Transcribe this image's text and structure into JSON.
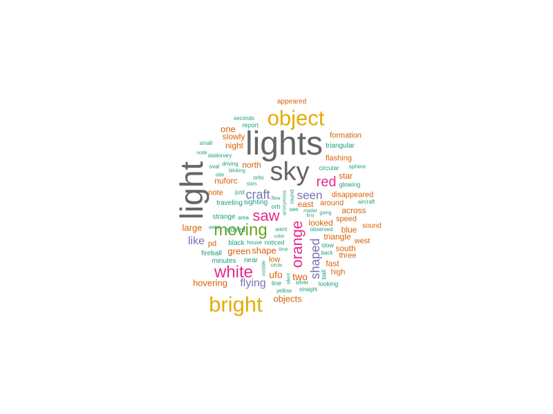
{
  "colors": {
    "teal": "#1b9e77",
    "orange": "#d95f02",
    "purple": "#7570b3",
    "pink": "#e7298a",
    "green": "#66a61e",
    "gold": "#e6ab02",
    "gray": "#666666"
  },
  "words": [
    {
      "text": "lights",
      "color": "gray"
    },
    {
      "text": "sky",
      "color": "gray"
    },
    {
      "text": "light",
      "color": "gray"
    },
    {
      "text": "object",
      "color": "gold"
    },
    {
      "text": "bright",
      "color": "gold"
    },
    {
      "text": "moving",
      "color": "green"
    },
    {
      "text": "white",
      "color": "pink"
    },
    {
      "text": "orange",
      "color": "pink"
    },
    {
      "text": "saw",
      "color": "pink"
    },
    {
      "text": "red",
      "color": "pink"
    },
    {
      "text": "shaped",
      "color": "purple"
    },
    {
      "text": "craft",
      "color": "purple"
    },
    {
      "text": "seen",
      "color": "purple"
    },
    {
      "text": "flying",
      "color": "purple"
    },
    {
      "text": "like",
      "color": "purple"
    },
    {
      "text": "ufo",
      "color": "orange"
    },
    {
      "text": "two",
      "color": "orange"
    },
    {
      "text": "green",
      "color": "orange"
    },
    {
      "text": "shape",
      "color": "orange"
    },
    {
      "text": "hovering",
      "color": "orange"
    },
    {
      "text": "objects",
      "color": "orange"
    },
    {
      "text": "large",
      "color": "orange"
    },
    {
      "text": "one",
      "color": "orange"
    },
    {
      "text": "slowly",
      "color": "orange"
    },
    {
      "text": "night",
      "color": "orange"
    },
    {
      "text": "north",
      "color": "orange"
    },
    {
      "text": "nuforc",
      "color": "orange"
    },
    {
      "text": "note",
      "color": "orange"
    },
    {
      "text": "pd",
      "color": "orange"
    },
    {
      "text": "low",
      "color": "orange"
    },
    {
      "text": "star",
      "color": "orange"
    },
    {
      "text": "flashing",
      "color": "orange"
    },
    {
      "text": "formation",
      "color": "orange"
    },
    {
      "text": "appeared",
      "color": "orange"
    },
    {
      "text": "disappeared",
      "color": "orange"
    },
    {
      "text": "east",
      "color": "orange"
    },
    {
      "text": "around",
      "color": "orange"
    },
    {
      "text": "across",
      "color": "orange"
    },
    {
      "text": "looked",
      "color": "orange"
    },
    {
      "text": "triangle",
      "color": "orange"
    },
    {
      "text": "blue",
      "color": "orange"
    },
    {
      "text": "speed",
      "color": "orange"
    },
    {
      "text": "south",
      "color": "orange"
    },
    {
      "text": "west",
      "color": "orange"
    },
    {
      "text": "sound",
      "color": "orange"
    },
    {
      "text": "three",
      "color": "orange"
    },
    {
      "text": "fast",
      "color": "orange"
    },
    {
      "text": "high",
      "color": "orange"
    },
    {
      "text": "report",
      "color": "teal"
    },
    {
      "text": "seconds",
      "color": "teal"
    },
    {
      "text": "small",
      "color": "teal"
    },
    {
      "text": "node",
      "color": "teal"
    },
    {
      "text": "stationary",
      "color": "teal"
    },
    {
      "text": "triangular",
      "color": "teal"
    },
    {
      "text": "oval",
      "color": "teal"
    },
    {
      "text": "driving",
      "color": "teal"
    },
    {
      "text": "blinking",
      "color": "teal"
    },
    {
      "text": "side",
      "color": "teal"
    },
    {
      "text": "circular",
      "color": "teal"
    },
    {
      "text": "sphere",
      "color": "teal"
    },
    {
      "text": "orbs",
      "color": "teal"
    },
    {
      "text": "stars",
      "color": "teal"
    },
    {
      "text": "glowing",
      "color": "teal"
    },
    {
      "text": "just",
      "color": "teal"
    },
    {
      "text": "flew",
      "color": "teal"
    },
    {
      "text": "traveling",
      "color": "teal"
    },
    {
      "text": "sighting",
      "color": "teal"
    },
    {
      "text": "orb",
      "color": "teal"
    },
    {
      "text": "anonymous",
      "color": "teal"
    },
    {
      "text": "round",
      "color": "teal"
    },
    {
      "text": "aircraft",
      "color": "teal"
    },
    {
      "text": "away",
      "color": "teal"
    },
    {
      "text": "moved",
      "color": "teal"
    },
    {
      "text": "strange",
      "color": "teal"
    },
    {
      "text": "area",
      "color": "teal"
    },
    {
      "text": "see",
      "color": "teal"
    },
    {
      "text": "madar",
      "color": "teal"
    },
    {
      "text": "first",
      "color": "teal"
    },
    {
      "text": "going",
      "color": "teal"
    },
    {
      "text": "went",
      "color": "teal"
    },
    {
      "text": "color",
      "color": "teal"
    },
    {
      "text": "observed",
      "color": "teal"
    },
    {
      "text": "black",
      "color": "teal"
    },
    {
      "text": "house",
      "color": "teal"
    },
    {
      "text": "noticed",
      "color": "teal"
    },
    {
      "text": "time",
      "color": "teal"
    },
    {
      "text": "slow",
      "color": "teal"
    },
    {
      "text": "back",
      "color": "teal"
    },
    {
      "text": "fireball",
      "color": "teal"
    },
    {
      "text": "minutes",
      "color": "teal"
    },
    {
      "text": "near",
      "color": "teal"
    },
    {
      "text": "circle",
      "color": "teal"
    },
    {
      "text": "outside",
      "color": "teal"
    },
    {
      "text": "silent",
      "color": "teal"
    },
    {
      "text": "line",
      "color": "teal"
    },
    {
      "text": "yellow",
      "color": "teal"
    },
    {
      "text": "silver",
      "color": "teal"
    },
    {
      "text": "straight",
      "color": "teal"
    },
    {
      "text": "ball",
      "color": "teal"
    },
    {
      "text": "looking",
      "color": "teal"
    }
  ]
}
